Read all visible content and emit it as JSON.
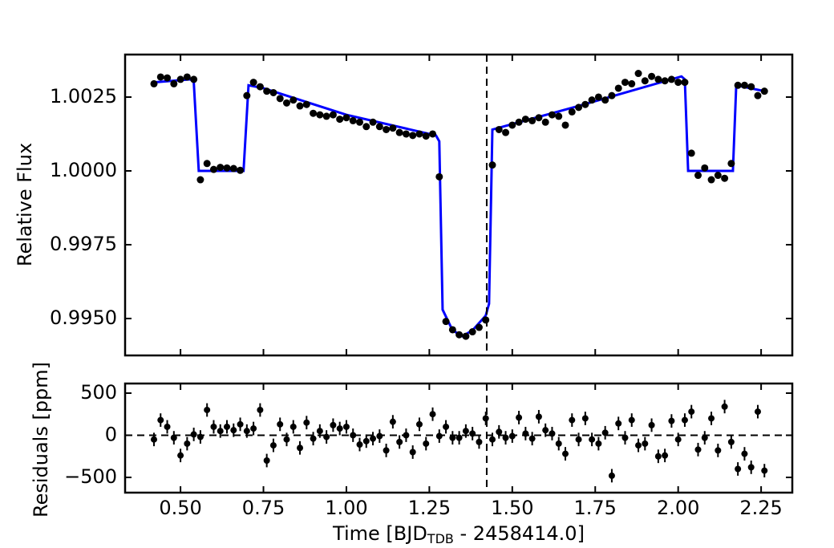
{
  "chart_data": [
    {
      "type": "scatter",
      "ylabel": "Relative Flux",
      "x": [
        0.42,
        0.44,
        0.46,
        0.48,
        0.5,
        0.52,
        0.54,
        0.56,
        0.58,
        0.6,
        0.62,
        0.64,
        0.66,
        0.68,
        0.7,
        0.72,
        0.74,
        0.76,
        0.78,
        0.8,
        0.82,
        0.84,
        0.86,
        0.88,
        0.9,
        0.92,
        0.94,
        0.96,
        0.98,
        1.0,
        1.02,
        1.04,
        1.06,
        1.08,
        1.1,
        1.12,
        1.14,
        1.16,
        1.18,
        1.2,
        1.22,
        1.24,
        1.26,
        1.28,
        1.3,
        1.32,
        1.34,
        1.36,
        1.38,
        1.4,
        1.42,
        1.44,
        1.46,
        1.48,
        1.5,
        1.52,
        1.54,
        1.56,
        1.58,
        1.6,
        1.62,
        1.64,
        1.66,
        1.68,
        1.7,
        1.72,
        1.74,
        1.76,
        1.78,
        1.8,
        1.82,
        1.84,
        1.86,
        1.88,
        1.9,
        1.92,
        1.94,
        1.96,
        1.98,
        2.0,
        2.02,
        2.04,
        2.06,
        2.08,
        2.1,
        2.12,
        2.14,
        2.16,
        2.18,
        2.2,
        2.22,
        2.24,
        2.26
      ],
      "values": [
        1.00295,
        1.00318,
        1.00315,
        1.00295,
        1.0031,
        1.00318,
        1.0031,
        0.9997,
        1.00025,
        1.00005,
        1.00012,
        1.0001,
        1.00008,
        1.00002,
        1.00255,
        1.003,
        1.00285,
        1.0027,
        1.00265,
        1.00245,
        1.0023,
        1.0024,
        1.0022,
        1.00225,
        1.00195,
        1.0019,
        1.00185,
        1.0019,
        1.00175,
        1.0018,
        1.0017,
        1.00165,
        1.0015,
        1.00165,
        1.0015,
        1.0014,
        1.00145,
        1.0013,
        1.00125,
        1.0012,
        1.00125,
        1.00118,
        1.00125,
        0.9998,
        0.9949,
        0.99462,
        0.99445,
        0.9944,
        0.99455,
        0.9947,
        0.99495,
        1.0002,
        1.0014,
        1.0013,
        1.00155,
        1.00165,
        1.00175,
        1.0017,
        1.0018,
        1.00165,
        1.0019,
        1.00185,
        1.00155,
        1.002,
        1.00215,
        1.00225,
        1.0024,
        1.0025,
        1.0024,
        1.00255,
        1.0028,
        1.003,
        1.00295,
        1.0033,
        1.00305,
        1.0032,
        1.0031,
        1.00305,
        1.0031,
        1.003,
        1.003,
        1.0006,
        0.99985,
        1.0001,
        0.9997,
        0.99985,
        0.99975,
        1.00025,
        1.0029,
        1.0029,
        1.00285,
        1.00255,
        1.0027
      ],
      "color": "#000000",
      "model": {
        "x": [
          0.42,
          0.53,
          0.54,
          0.555,
          0.69,
          0.705,
          0.75,
          1.0,
          1.27,
          1.28,
          1.29,
          1.32,
          1.35,
          1.38,
          1.42,
          1.43,
          1.44,
          1.7,
          2.01,
          2.02,
          2.03,
          2.165,
          2.175,
          2.26
        ],
        "values": [
          1.003,
          1.0031,
          1.003,
          1.0,
          1.0,
          1.0029,
          1.0028,
          1.0019,
          1.0012,
          1.001,
          0.9953,
          0.9946,
          0.9944,
          0.9946,
          0.9951,
          0.9955,
          1.0014,
          1.0022,
          1.0032,
          1.0031,
          1.0,
          1.0,
          1.0029,
          1.0027
        ],
        "color": "#0000ff"
      },
      "vline": 1.423,
      "xlim": [
        0.333,
        2.344
      ],
      "ylim": [
        0.99375,
        1.00394
      ],
      "xticks": [
        0.5,
        0.75,
        1,
        1.25,
        1.5,
        1.75,
        2,
        2.25
      ],
      "yticks": [
        {
          "value": 0.995,
          "label": "0.9950"
        },
        0.9975,
        {
          "value": 1,
          "label": "1.0000"
        },
        1.0025
      ]
    },
    {
      "type": "errorbar",
      "ylabel": "Residuals [ppm]",
      "xlabel": {
        "main": "Time [BJD",
        "sub": "TDB",
        "rest": " - 2458414.0]"
      },
      "x": [
        0.42,
        0.44,
        0.46,
        0.48,
        0.5,
        0.52,
        0.54,
        0.56,
        0.58,
        0.6,
        0.62,
        0.64,
        0.66,
        0.68,
        0.7,
        0.72,
        0.74,
        0.76,
        0.78,
        0.8,
        0.82,
        0.84,
        0.86,
        0.88,
        0.9,
        0.92,
        0.94,
        0.96,
        0.98,
        1.0,
        1.02,
        1.04,
        1.06,
        1.08,
        1.1,
        1.12,
        1.14,
        1.16,
        1.18,
        1.2,
        1.22,
        1.24,
        1.26,
        1.28,
        1.3,
        1.32,
        1.34,
        1.36,
        1.38,
        1.4,
        1.42,
        1.44,
        1.46,
        1.48,
        1.5,
        1.52,
        1.54,
        1.56,
        1.58,
        1.6,
        1.62,
        1.64,
        1.66,
        1.68,
        1.7,
        1.72,
        1.74,
        1.76,
        1.78,
        1.8,
        1.82,
        1.84,
        1.86,
        1.88,
        1.9,
        1.92,
        1.94,
        1.96,
        1.98,
        2.0,
        2.02,
        2.04,
        2.06,
        2.08,
        2.1,
        2.12,
        2.14,
        2.16,
        2.18,
        2.2,
        2.22,
        2.24,
        2.26
      ],
      "values": [
        -50,
        180,
        100,
        -30,
        -240,
        -100,
        10,
        -20,
        300,
        100,
        50,
        100,
        60,
        130,
        50,
        80,
        300,
        -300,
        -120,
        130,
        -50,
        100,
        -150,
        150,
        -40,
        50,
        -20,
        120,
        80,
        100,
        0,
        -110,
        -70,
        -40,
        -10,
        -180,
        160,
        -80,
        0,
        -200,
        130,
        -100,
        250,
        -10,
        100,
        -30,
        -30,
        50,
        20,
        -80,
        200,
        -50,
        40,
        -30,
        -10,
        210,
        20,
        -40,
        220,
        60,
        20,
        -100,
        -220,
        180,
        -50,
        200,
        -50,
        -100,
        30,
        -480,
        140,
        -30,
        180,
        -120,
        -100,
        120,
        -250,
        -240,
        170,
        -50,
        180,
        280,
        -170,
        -30,
        200,
        -180,
        340,
        -80,
        -400,
        -220,
        -380,
        280,
        -420
      ],
      "yerr": 80,
      "color": "#000000",
      "hline": 0,
      "vline": 1.423,
      "xlim": [
        0.333,
        2.344
      ],
      "ylim": [
        -681,
        614
      ],
      "xticks": [
        {
          "value": 0.5,
          "label": "0.50"
        },
        0.75,
        {
          "value": 1,
          "label": "1.00"
        },
        1.25,
        {
          "value": 1.5,
          "label": "1.50"
        },
        1.75,
        {
          "value": 2,
          "label": "2.00"
        },
        2.25
      ],
      "yticks": [
        {
          "value": -500,
          "label": "−500"
        },
        0,
        500
      ]
    }
  ]
}
